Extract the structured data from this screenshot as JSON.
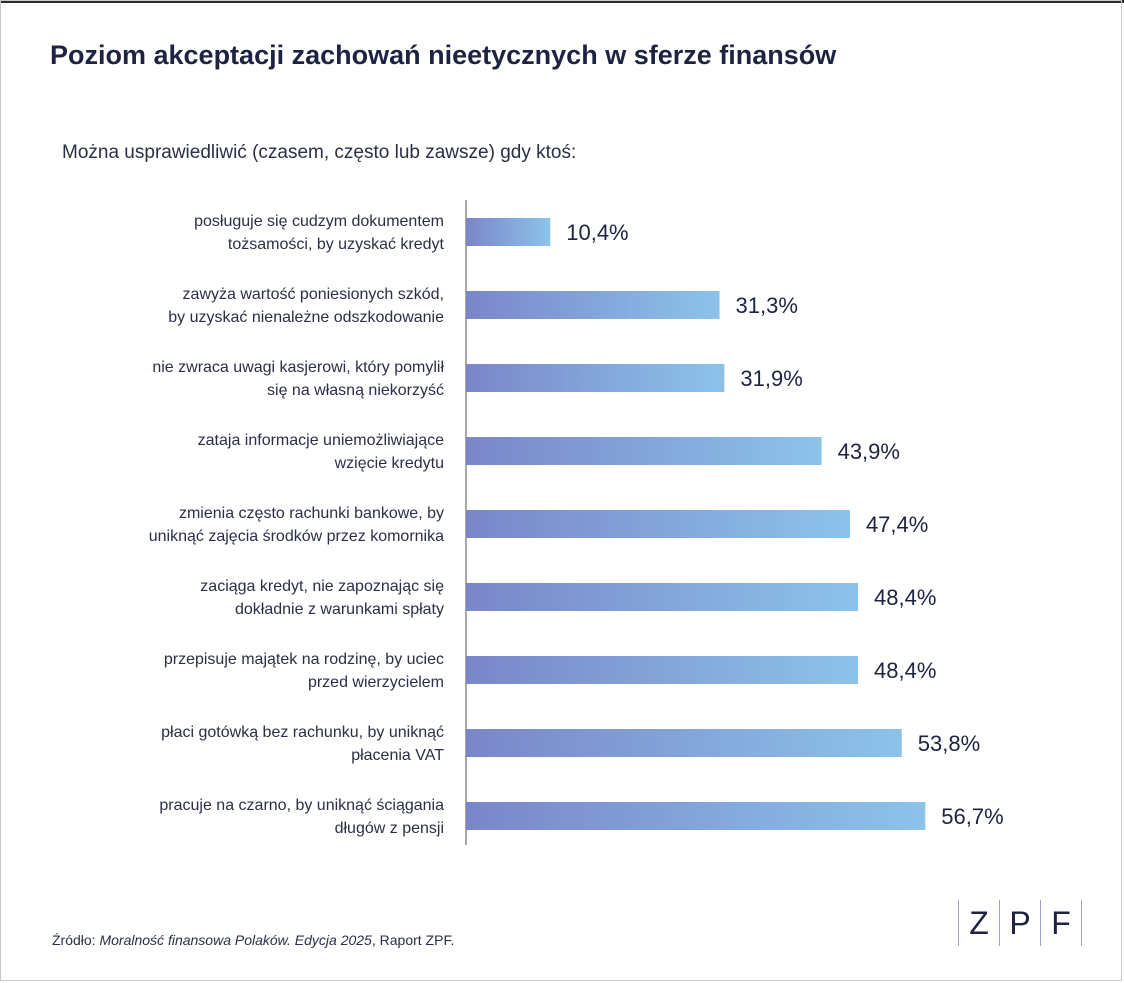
{
  "title": "Poziom akceptacji zachowań nieetycznych w sferze finansów",
  "subtitle": "Można usprawiedliwić (czasem, często lub zawsze) gdy ktoś:",
  "source": {
    "prefix": "Źródło: ",
    "italic": "Moralność finansowa Polaków. Edycja 2025",
    "suffix": ", Raport ZPF."
  },
  "logo": {
    "letters": [
      "Z",
      "P",
      "F"
    ]
  },
  "colors": {
    "bar_start": "#7a86c9",
    "bar_end": "#8cc3ea",
    "text": "#1d2340"
  },
  "chart_data": {
    "type": "bar",
    "orientation": "horizontal",
    "title": "Poziom akceptacji zachowań nieetycznych w sferze finansów",
    "subtitle": "Można usprawiedliwić (czasem, często lub zawsze) gdy ktoś:",
    "xlim": [
      0,
      60
    ],
    "categories": [
      [
        "posługuje się cudzym dokumentem",
        "tożsamości, by uzyskać kredyt"
      ],
      [
        "zawyża wartość poniesionych szkód,",
        "by uzyskać nienależne odszkodowanie"
      ],
      [
        "nie zwraca uwagi kasjerowi, który pomylił",
        "się na własną niekorzyść"
      ],
      [
        "zataja informacje uniemożliwiające",
        "wzięcie kredytu"
      ],
      [
        "zmienia często rachunki bankowe, by",
        "uniknąć zajęcia środków przez komornika"
      ],
      [
        "zaciąga kredyt, nie zapoznając się",
        "dokładnie z warunkami spłaty"
      ],
      [
        "przepisuje majątek na rodzinę, by uciec",
        "przed wierzycielem"
      ],
      [
        "płaci gotówką bez rachunku, by uniknąć",
        "płacenia VAT"
      ],
      [
        "pracuje na czarno, by uniknąć ściągania",
        "długów z pensji"
      ]
    ],
    "values": [
      10.4,
      31.3,
      31.9,
      43.9,
      47.4,
      48.4,
      48.4,
      53.8,
      56.7
    ],
    "value_labels": [
      "10,4%",
      "31,3%",
      "31,9%",
      "43,9%",
      "47,4%",
      "48,4%",
      "48,4%",
      "53,8%",
      "56,7%"
    ]
  }
}
